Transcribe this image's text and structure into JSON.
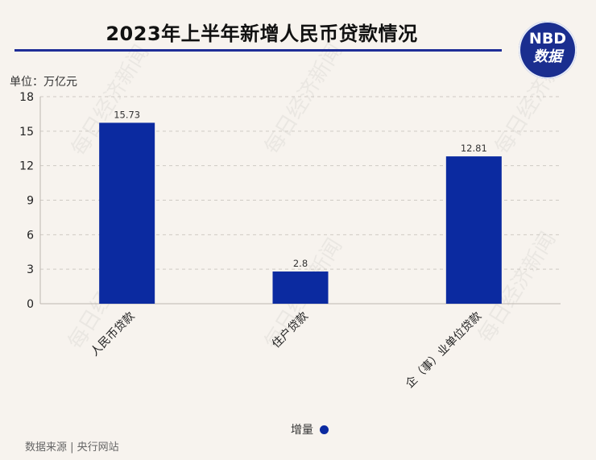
{
  "header": {
    "title": "2023年上半年新增人民币贷款情况"
  },
  "logo": {
    "line1": "NBD",
    "line2": "数据"
  },
  "unit_label": "单位：万亿元",
  "watermark": "每日经济新闻",
  "source": "数据来源 | 央行网站",
  "legend": {
    "label": "增量"
  },
  "chart_data": {
    "type": "bar",
    "categories": [
      "人民币贷款",
      "住户贷款",
      "企（事）业单位贷款"
    ],
    "series": [
      {
        "name": "增量",
        "values": [
          15.73,
          2.8,
          12.81
        ],
        "color": "#0b2aa0"
      }
    ],
    "xlabel": "",
    "ylabel": "",
    "ylim": [
      0,
      18
    ],
    "yticks": [
      0,
      3,
      6,
      9,
      12,
      15,
      18
    ],
    "grid": true,
    "legend_position": "bottom"
  }
}
